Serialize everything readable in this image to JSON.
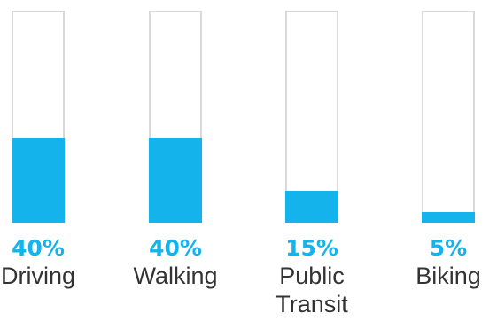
{
  "chart_data": {
    "type": "bar",
    "categories": [
      "Driving",
      "Walking",
      "Public Transit",
      "Biking"
    ],
    "values": [
      40,
      40,
      15,
      5
    ],
    "value_labels": [
      "40%",
      "40%",
      "15%",
      "5%"
    ],
    "name_lines": [
      [
        "Driving"
      ],
      [
        "Walking"
      ],
      [
        "Public",
        "Transit"
      ],
      [
        "Biking"
      ]
    ],
    "title": "",
    "xlabel": "",
    "ylabel": "",
    "ylim": [
      0,
      100
    ],
    "grid": false,
    "colors": {
      "fill": "#14b3eb",
      "outline": "#d9d9d9",
      "percent_text": "#14b3eb",
      "label_text": "#333333"
    }
  }
}
